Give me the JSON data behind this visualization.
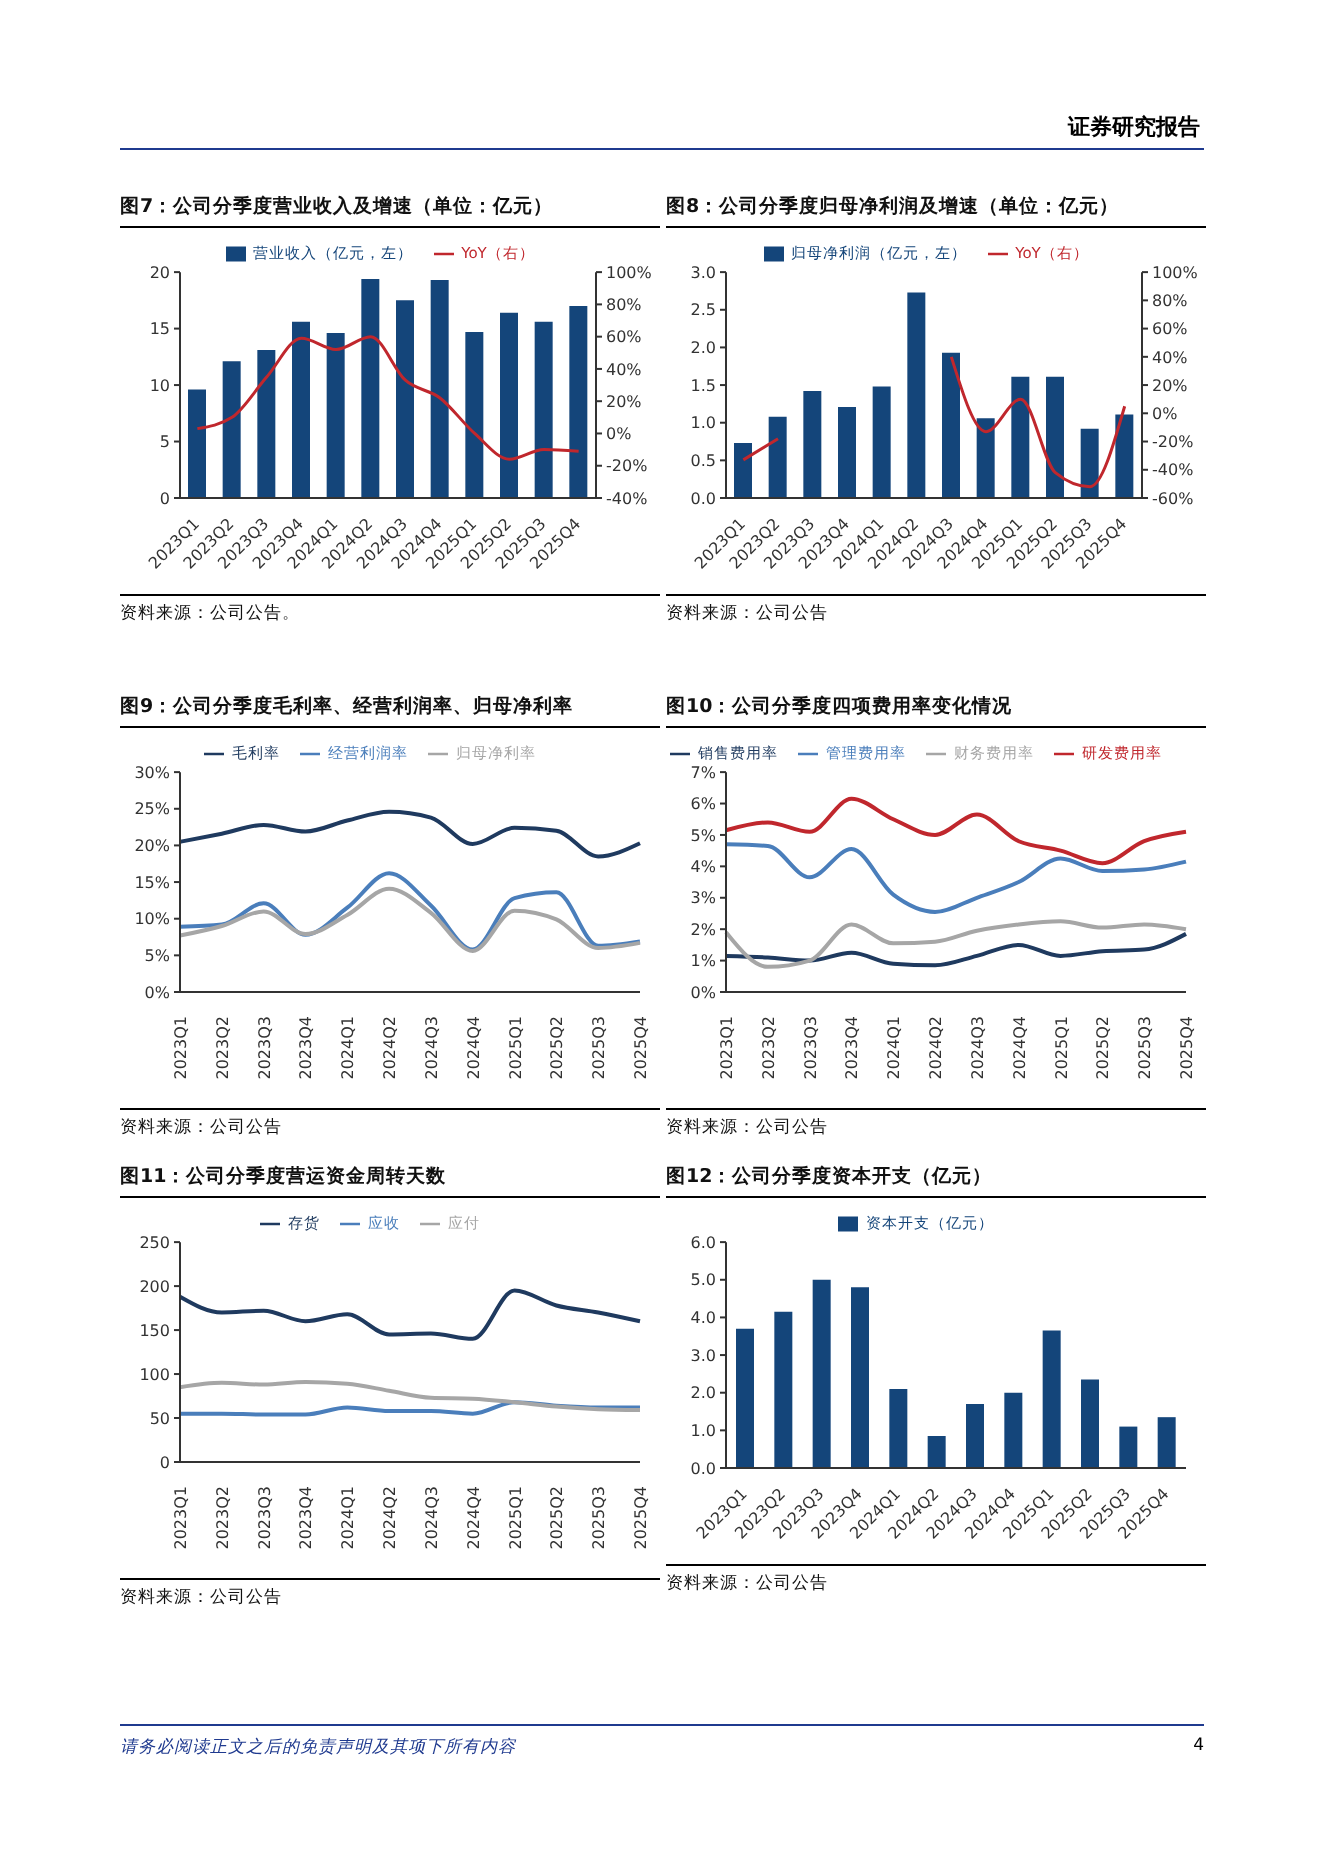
{
  "chart_data": [
    {
      "type": "bar",
      "title": "图7：公司分季度营业收入及增速（单位：亿元）",
      "categories": [
        "2023Q1",
        "2023Q2",
        "2023Q3",
        "2023Q4",
        "2024Q1",
        "2024Q2",
        "2024Q3",
        "2024Q4",
        "2025Q1",
        "2025Q2",
        "2025Q3",
        "2025Q4"
      ],
      "series": [
        {
          "name": "营业收入（亿元，左）",
          "color": "#14457a",
          "values": [
            9.6,
            12.1,
            13.1,
            15.6,
            14.6,
            19.4,
            17.5,
            19.3,
            14.7,
            16.4,
            15.6,
            17.0
          ]
        },
        {
          "name": "YoY（右）",
          "type": "line",
          "axis": "y2",
          "color": "#c0272d",
          "values": [
            3,
            10,
            35,
            59,
            52,
            60,
            33,
            22,
            0,
            -16,
            -10,
            -11
          ]
        }
      ],
      "ylim": [
        0,
        20
      ],
      "yticks": [
        0,
        5,
        10,
        15,
        20
      ],
      "y2lim": [
        -40,
        100
      ],
      "y2ticks": [
        {
          "value": -40,
          "label": "-40%"
        },
        {
          "value": -20,
          "label": "-20%"
        },
        {
          "value": 0,
          "label": "0%"
        },
        {
          "value": 20,
          "label": "20%"
        },
        {
          "value": 40,
          "label": "40%"
        },
        {
          "value": 60,
          "label": "60%"
        },
        {
          "value": 80,
          "label": "80%"
        },
        {
          "value": 100,
          "label": "100%"
        }
      ],
      "legend": "top",
      "annotations": [
        "资料来源：公司公告。",
        "证券研究报告"
      ]
    },
    {
      "type": "bar",
      "title": "图8：公司分季度归母净利润及增速（单位：亿元）",
      "categories": [
        "2023Q1",
        "2023Q2",
        "2023Q3",
        "2023Q4",
        "2024Q1",
        "2024Q2",
        "2024Q3",
        "2024Q4",
        "2025Q1",
        "2025Q2",
        "2025Q3",
        "2025Q4"
      ],
      "series": [
        {
          "name": "归母净利润（亿元，左）",
          "color": "#14457a",
          "values": [
            0.73,
            1.08,
            1.42,
            1.21,
            1.48,
            2.73,
            1.93,
            1.06,
            1.61,
            1.61,
            0.92,
            1.11
          ]
        },
        {
          "name": "YoY（右）",
          "type": "line",
          "axis": "y2",
          "color": "#c0272d",
          "values": [
            -33,
            -18,
            null,
            null,
            null,
            null,
            40,
            -13,
            10,
            -42,
            -52,
            5
          ]
        }
      ],
      "ylim": [
        0,
        3
      ],
      "yticks": [
        {
          "value": 0,
          "label": "0.0"
        },
        {
          "value": 0.5,
          "label": "0.5"
        },
        {
          "value": 1,
          "label": "1.0"
        },
        {
          "value": 1.5,
          "label": "1.5"
        },
        {
          "value": 2,
          "label": "2.0"
        },
        {
          "value": 2.5,
          "label": "2.5"
        },
        {
          "value": 3,
          "label": "3.0"
        }
      ],
      "y2lim": [
        -60,
        100
      ],
      "y2ticks": [
        {
          "value": -60,
          "label": "-60%"
        },
        {
          "value": -40,
          "label": "-40%"
        },
        {
          "value": -20,
          "label": "-20%"
        },
        {
          "value": 0,
          "label": "0%"
        },
        {
          "value": 20,
          "label": "20%"
        },
        {
          "value": 40,
          "label": "40%"
        },
        {
          "value": 60,
          "label": "60%"
        },
        {
          "value": 80,
          "label": "80%"
        },
        {
          "value": 100,
          "label": "100%"
        }
      ],
      "legend": "top",
      "annotations": [
        "资料来源：公司公告"
      ]
    },
    {
      "type": "line",
      "title": "图9：公司分季度毛利率、经营利润率、归母净利率",
      "categories": [
        "2023Q1",
        "2023Q2",
        "2023Q3",
        "2023Q4",
        "2024Q1",
        "2024Q2",
        "2024Q3",
        "2024Q4",
        "2025Q1",
        "2025Q2",
        "2025Q3",
        "2025Q4"
      ],
      "series": [
        {
          "name": "毛利率",
          "color": "#1f3a5f",
          "values": [
            20.5,
            21.6,
            22.8,
            21.9,
            23.4,
            24.6,
            23.8,
            20.2,
            22.4,
            22.0,
            18.5,
            20.3
          ]
        },
        {
          "name": "经营利润率",
          "color": "#4a7ebb",
          "values": [
            8.9,
            9.2,
            12.1,
            7.8,
            11.5,
            16.2,
            11.8,
            5.8,
            12.8,
            13.6,
            6.3,
            6.9
          ]
        },
        {
          "name": "归母净利率",
          "color": "#a6a6a6",
          "values": [
            7.7,
            9.0,
            11.0,
            7.9,
            10.5,
            14.1,
            10.8,
            5.6,
            11.1,
            9.9,
            6.0,
            6.7
          ]
        }
      ],
      "ylim": [
        0,
        30
      ],
      "yticks": [
        {
          "value": 0,
          "label": "0%"
        },
        {
          "value": 5,
          "label": "5%"
        },
        {
          "value": 10,
          "label": "10%"
        },
        {
          "value": 15,
          "label": "15%"
        },
        {
          "value": 20,
          "label": "20%"
        },
        {
          "value": 25,
          "label": "25%"
        },
        {
          "value": 30,
          "label": "30%"
        }
      ],
      "legend": "top",
      "annotations": [
        "资料来源：公司公告"
      ]
    },
    {
      "type": "line",
      "title": "图10：公司分季度四项费用率变化情况",
      "categories": [
        "2023Q1",
        "2023Q2",
        "2023Q3",
        "2023Q4",
        "2024Q1",
        "2024Q2",
        "2024Q3",
        "2024Q4",
        "2025Q1",
        "2025Q2",
        "2025Q3",
        "2025Q4"
      ],
      "series": [
        {
          "name": "销售费用率",
          "color": "#1f3a5f",
          "values": [
            1.15,
            1.1,
            1.0,
            1.25,
            0.9,
            0.85,
            1.15,
            1.5,
            1.15,
            1.3,
            1.35,
            1.85
          ]
        },
        {
          "name": "管理费用率",
          "color": "#4a7ebb",
          "values": [
            4.7,
            4.65,
            3.65,
            4.55,
            3.1,
            2.55,
            3.0,
            3.5,
            4.25,
            3.85,
            3.9,
            4.15
          ]
        },
        {
          "name": "财务费用率",
          "color": "#a6a6a6",
          "values": [
            1.9,
            0.8,
            1.0,
            2.15,
            1.55,
            1.6,
            1.95,
            2.15,
            2.25,
            2.05,
            2.15,
            2.0
          ]
        },
        {
          "name": "研发费用率",
          "color": "#c0272d",
          "values": [
            5.15,
            5.4,
            5.1,
            6.15,
            5.5,
            5.0,
            5.65,
            4.8,
            4.5,
            4.1,
            4.8,
            5.1
          ]
        }
      ],
      "ylim": [
        0,
        7
      ],
      "yticks": [
        {
          "value": 0,
          "label": "0%"
        },
        {
          "value": 1,
          "label": "1%"
        },
        {
          "value": 2,
          "label": "2%"
        },
        {
          "value": 3,
          "label": "3%"
        },
        {
          "value": 4,
          "label": "4%"
        },
        {
          "value": 5,
          "label": "5%"
        },
        {
          "value": 6,
          "label": "6%"
        },
        {
          "value": 7,
          "label": "7%"
        }
      ],
      "legend": "top",
      "annotations": [
        "资料来源：公司公告"
      ]
    },
    {
      "type": "line",
      "title": "图11：公司分季度营运资金周转天数",
      "categories": [
        "2023Q1",
        "2023Q2",
        "2023Q3",
        "2023Q4",
        "2024Q1",
        "2024Q2",
        "2024Q3",
        "2024Q4",
        "2025Q1",
        "2025Q2",
        "2025Q3",
        "2025Q4"
      ],
      "series": [
        {
          "name": "存货",
          "color": "#1f3a5f",
          "values": [
            188,
            170,
            172,
            160,
            168,
            145,
            146,
            140,
            195,
            178,
            170,
            160
          ]
        },
        {
          "name": "应收",
          "color": "#4a7ebb",
          "values": [
            55,
            55,
            54,
            54,
            62,
            58,
            58,
            55,
            68,
            64,
            62,
            62
          ]
        },
        {
          "name": "应付",
          "color": "#a6a6a6",
          "values": [
            85,
            90,
            88,
            91,
            89,
            81,
            73,
            72,
            68,
            63,
            60,
            59
          ]
        }
      ],
      "ylim": [
        0,
        250
      ],
      "yticks": [
        0,
        50,
        100,
        150,
        200,
        250
      ],
      "legend": "top",
      "annotations": [
        "资料来源：公司公告"
      ]
    },
    {
      "type": "bar",
      "title": "图12：公司分季度资本开支（亿元）",
      "categories": [
        "2023Q1",
        "2023Q2",
        "2023Q3",
        "2023Q4",
        "2024Q1",
        "2024Q2",
        "2024Q3",
        "2024Q4",
        "2025Q1",
        "2025Q2",
        "2025Q3",
        "2025Q4"
      ],
      "series": [
        {
          "name": "资本开支（亿元）",
          "color": "#14457a",
          "values": [
            3.7,
            4.15,
            5.0,
            4.8,
            2.1,
            0.85,
            1.7,
            2.0,
            3.65,
            2.35,
            1.1,
            1.35
          ]
        }
      ],
      "ylim": [
        0,
        6
      ],
      "yticks": [
        {
          "value": 0,
          "label": "0.0"
        },
        {
          "value": 1,
          "label": "1.0"
        },
        {
          "value": 2,
          "label": "2.0"
        },
        {
          "value": 3,
          "label": "3.0"
        },
        {
          "value": 4,
          "label": "4.0"
        },
        {
          "value": 5,
          "label": "5.0"
        },
        {
          "value": 6,
          "label": "6.0"
        }
      ],
      "legend": "top",
      "annotations": [
        "资料来源：公司公告",
        "请务必阅读正文之后的免责声明及其项下所有内容",
        "4"
      ]
    }
  ]
}
